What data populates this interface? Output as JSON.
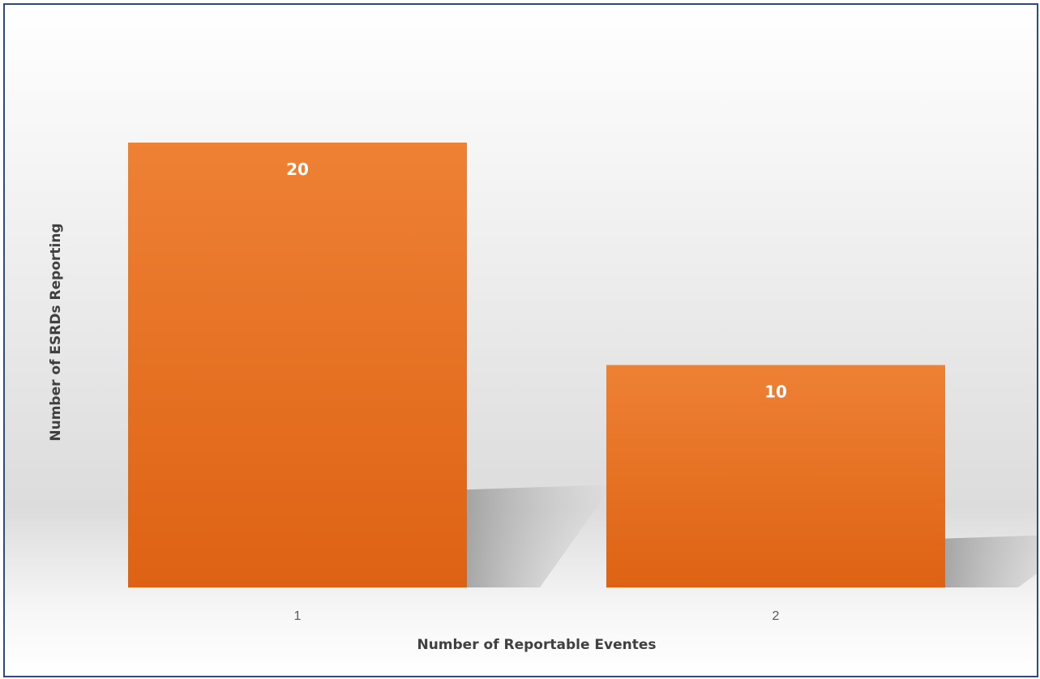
{
  "chart_data": {
    "type": "bar",
    "title": "",
    "categories": [
      "1",
      "2"
    ],
    "values": [
      20,
      10
    ],
    "data_labels": [
      "20",
      "10"
    ],
    "xlabel": "Number of Reportable Eventes",
    "ylabel": "Number of ESRDs Reporting",
    "ylim": [
      0,
      20
    ],
    "grid": false,
    "legend": "none",
    "colors": {
      "bar_top": "#ee8135",
      "bar_bottom": "#de6213",
      "frame_border": "#2f4a7f"
    }
  }
}
